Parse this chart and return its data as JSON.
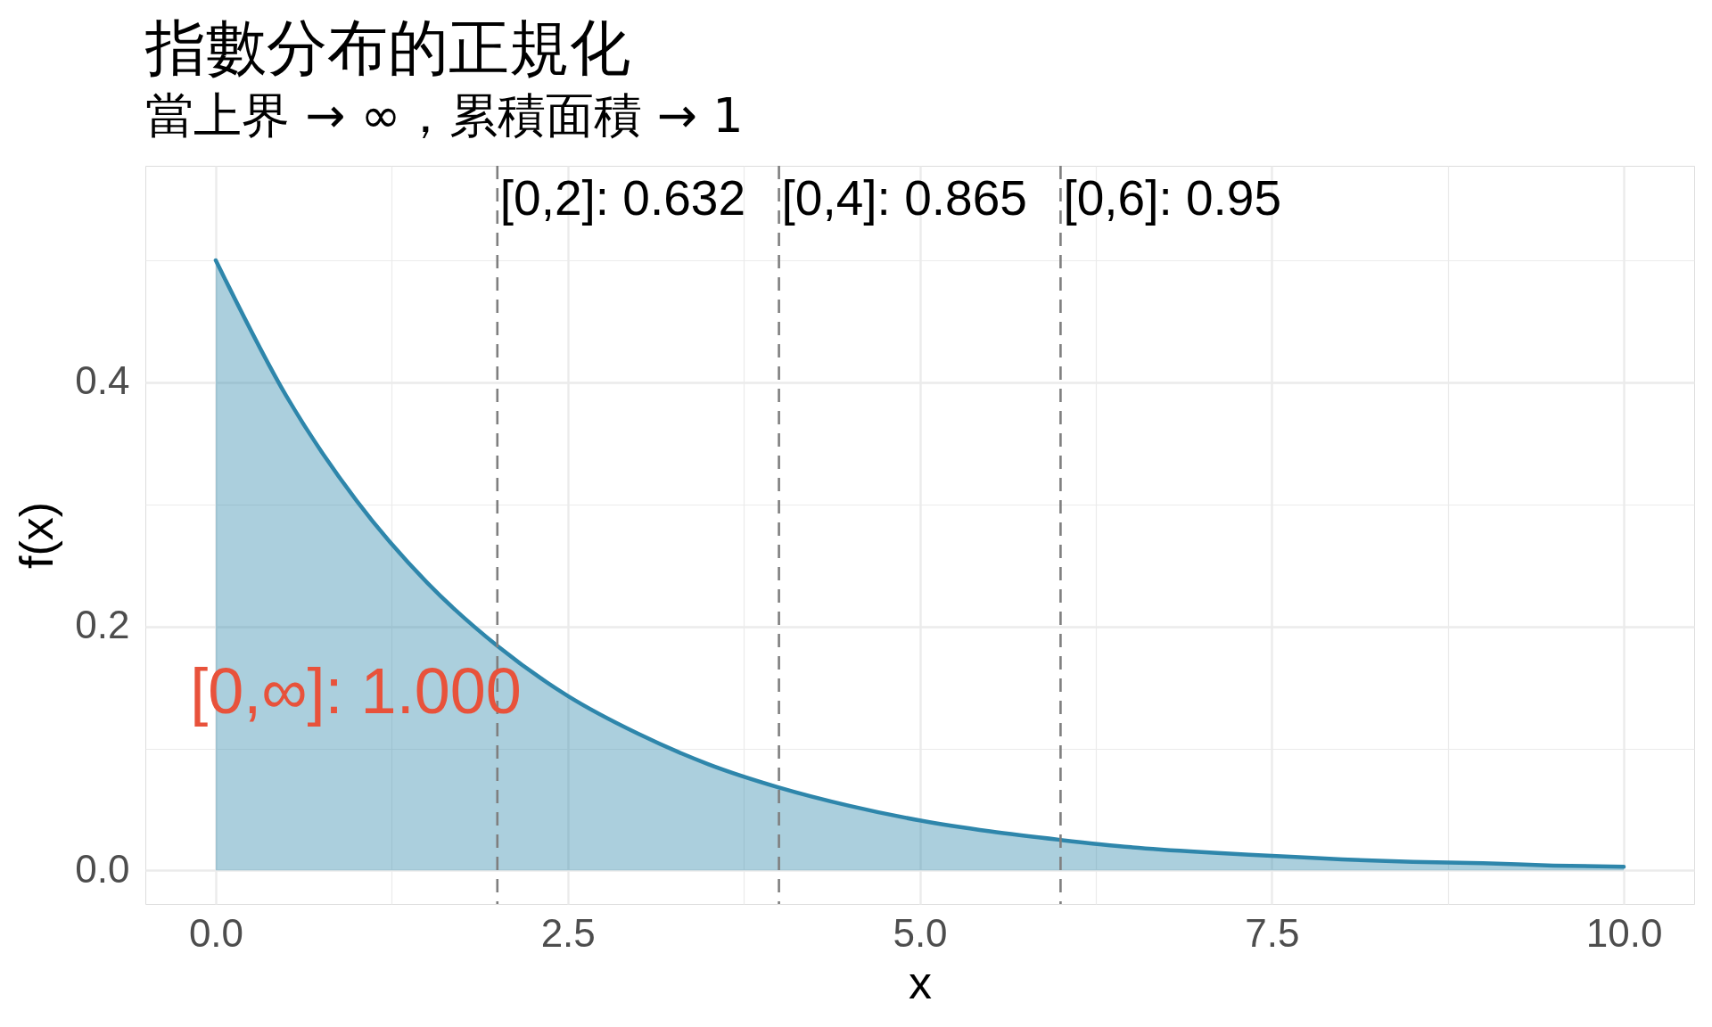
{
  "chart_data": {
    "type": "area",
    "title": "指數分布的正規化",
    "subtitle": "當上界 → ∞，累積面積 → 1",
    "xlabel": "x",
    "ylabel": "f(x)",
    "x": [
      0,
      0.5,
      1,
      1.5,
      2,
      2.5,
      3,
      3.5,
      4,
      4.5,
      5,
      5.5,
      6,
      6.5,
      7,
      7.5,
      8,
      8.5,
      9,
      9.5,
      10
    ],
    "series": [
      {
        "color": "#2e86ab",
        "values": [
          0.5,
          0.389,
          0.303,
          0.236,
          0.184,
          0.143,
          0.112,
          0.087,
          0.068,
          0.053,
          0.041,
          0.032,
          0.025,
          0.019,
          0.015,
          0.012,
          0.009,
          0.007,
          0.006,
          0.004,
          0.003
        ]
      }
    ],
    "xlim": [
      -0.5,
      10.5
    ],
    "ylim": [
      -0.0275,
      0.5775
    ],
    "xticks": [
      {
        "value": 0,
        "label": "0.0"
      },
      {
        "value": 1.25,
        "label": null
      },
      2.5,
      {
        "value": 3.75,
        "label": null
      },
      {
        "value": 5,
        "label": "5.0"
      },
      {
        "value": 6.25,
        "label": null
      },
      7.5,
      {
        "value": 8.75,
        "label": null
      },
      {
        "value": 10,
        "label": "10.0"
      }
    ],
    "yticks": [
      {
        "value": 0,
        "label": "0.0"
      },
      {
        "value": 0.1,
        "label": null
      },
      0.2,
      {
        "value": 0.3,
        "label": null
      },
      0.4,
      {
        "value": 0.5,
        "label": null
      }
    ],
    "ref_lines": [
      {
        "axis": "x",
        "value": 2,
        "color": "#7f7f7f",
        "line_style": "dashed"
      },
      {
        "axis": "x",
        "value": 4,
        "color": "#7f7f7f",
        "line_style": "dashed"
      },
      {
        "axis": "x",
        "value": 6,
        "color": "#7f7f7f",
        "line_style": "dashed"
      }
    ],
    "annotations": [
      {
        "text": "[0,2]: 0.632",
        "x": 2,
        "y": 0.55
      },
      {
        "text": "[0,4]: 0.865",
        "x": 4,
        "y": 0.55
      },
      {
        "text": "[0,6]: 0.95",
        "x": 6,
        "y": 0.55
      },
      "[0,∞]: 1.000"
    ],
    "grid": true
  }
}
